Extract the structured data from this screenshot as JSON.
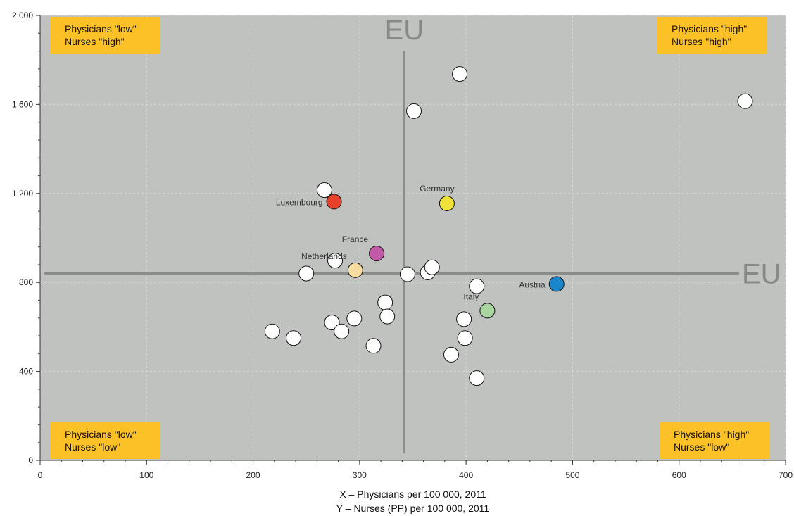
{
  "chart_data": {
    "type": "scatter",
    "xlabel_line1": "X – Physicians per 100 000, 2011",
    "xlabel_line2": "Y – Nurses (PP) per 100 000, 2011",
    "xlim": [
      0,
      700
    ],
    "ylim": [
      0,
      2000
    ],
    "x_ticks": [
      {
        "value": 0,
        "label": "0"
      },
      {
        "value": 100,
        "label": "100"
      },
      {
        "value": 200,
        "label": "200"
      },
      {
        "value": 300,
        "label": "300"
      },
      {
        "value": 400,
        "label": "400"
      },
      {
        "value": 500,
        "label": "500"
      },
      {
        "value": 600,
        "label": "600"
      },
      {
        "value": 700,
        "label": "700"
      }
    ],
    "y_ticks": [
      {
        "value": 0,
        "label": "0"
      },
      {
        "value": 400,
        "label": "400"
      },
      {
        "value": 800,
        "label": "800"
      },
      {
        "value": 1200,
        "label": "1 200"
      },
      {
        "value": 1600,
        "label": "1 600"
      },
      {
        "value": 2000,
        "label": "2 000"
      }
    ],
    "grid": true,
    "eu_reference": {
      "x": 342,
      "y": 840,
      "label": "EU"
    },
    "quadrant_labels": [
      {
        "position": "top-left",
        "line1": "Physicians \"low\"",
        "line2": "Nurses \"high\""
      },
      {
        "position": "top-right",
        "line1": "Physicians \"high\"",
        "line2": "Nurses \"high\""
      },
      {
        "position": "bottom-left",
        "line1": "Physicians \"low\"",
        "line2": "Nurses \"low\""
      },
      {
        "position": "bottom-right",
        "line1": "Physicians \"high\"",
        "line2": "Nurses \"low\""
      }
    ],
    "highlighted": [
      {
        "name": "Luxembourg",
        "x": 276,
        "y": 1163,
        "color": "#e8412b",
        "label_side": "left"
      },
      {
        "name": "Germany",
        "x": 382,
        "y": 1155,
        "color": "#efe33a",
        "label_side": "above"
      },
      {
        "name": "France",
        "x": 316,
        "y": 930,
        "color": "#c25aa8",
        "label_side": "above-left"
      },
      {
        "name": "Netherlands",
        "x": 296,
        "y": 855,
        "color": "#f7dca0",
        "label_side": "above-left"
      },
      {
        "name": "Austria",
        "x": 485,
        "y": 793,
        "color": "#1a86cc",
        "label_side": "left"
      },
      {
        "name": "Italy",
        "x": 420,
        "y": 673,
        "color": "#a8d5a0",
        "label_side": "above-left"
      }
    ],
    "others": [
      {
        "x": 394,
        "y": 1737
      },
      {
        "x": 351,
        "y": 1570
      },
      {
        "x": 662,
        "y": 1615
      },
      {
        "x": 267,
        "y": 1215
      },
      {
        "x": 277,
        "y": 898
      },
      {
        "x": 250,
        "y": 840
      },
      {
        "x": 345,
        "y": 837
      },
      {
        "x": 364,
        "y": 845
      },
      {
        "x": 368,
        "y": 868
      },
      {
        "x": 410,
        "y": 783
      },
      {
        "x": 324,
        "y": 710
      },
      {
        "x": 326,
        "y": 647
      },
      {
        "x": 295,
        "y": 638
      },
      {
        "x": 274,
        "y": 620
      },
      {
        "x": 283,
        "y": 580
      },
      {
        "x": 218,
        "y": 580
      },
      {
        "x": 238,
        "y": 550
      },
      {
        "x": 313,
        "y": 515
      },
      {
        "x": 398,
        "y": 635
      },
      {
        "x": 399,
        "y": 550
      },
      {
        "x": 386,
        "y": 475
      },
      {
        "x": 410,
        "y": 370
      }
    ],
    "colors": {
      "plot_background": "#c0c2c0",
      "quadrant_box": "#fdc128",
      "reference_line": "#8c8c8c",
      "default_point": "#ffffff"
    }
  }
}
